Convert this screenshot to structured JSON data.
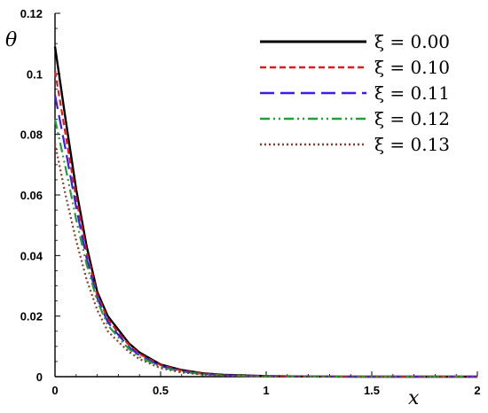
{
  "chart_data": {
    "type": "line",
    "title": "",
    "xlabel": "x",
    "ylabel": "θ",
    "xlim": [
      0,
      2
    ],
    "ylim": [
      0,
      0.12
    ],
    "x_ticks": [
      0,
      0.5,
      1,
      1.5,
      2
    ],
    "x_tick_labels": [
      "0",
      "0.5",
      "1",
      "1.5",
      "2"
    ],
    "y_ticks": [
      0,
      0.02,
      0.04,
      0.06,
      0.08,
      0.1,
      0.12
    ],
    "y_tick_labels": [
      "0",
      "0.02",
      "0.04",
      "0.06",
      "0.08",
      "0.1",
      "0.12"
    ],
    "grid": false,
    "legend_position": "top-right",
    "series": [
      {
        "name": "ξ = 0.00",
        "color": "#000000",
        "dash": "solid",
        "x": [
          0,
          0.05,
          0.1,
          0.15,
          0.2,
          0.25,
          0.3,
          0.35,
          0.4,
          0.5,
          0.6,
          0.7,
          0.8,
          1.0,
          1.2,
          1.5,
          2.0
        ],
        "y": [
          0.109,
          0.085,
          0.062,
          0.043,
          0.028,
          0.02,
          0.0155,
          0.011,
          0.008,
          0.004,
          0.0022,
          0.0011,
          0.0006,
          0.0002,
          5e-05,
          0.0,
          0.0
        ]
      },
      {
        "name": "ξ = 0.10",
        "color": "#e8161c",
        "dash": "dashed",
        "x": [
          0,
          0.05,
          0.1,
          0.15,
          0.2,
          0.25,
          0.3,
          0.35,
          0.4,
          0.5,
          0.6,
          0.7,
          0.8,
          1.0,
          1.2,
          1.5,
          2.0
        ],
        "y": [
          0.101,
          0.08,
          0.059,
          0.041,
          0.027,
          0.019,
          0.0145,
          0.0105,
          0.0075,
          0.0038,
          0.002,
          0.001,
          0.0005,
          0.00015,
          4e-05,
          0.0,
          0.0
        ]
      },
      {
        "name": "ξ = 0.11",
        "color": "#3b1ee6",
        "dash": "longdash",
        "x": [
          0,
          0.05,
          0.1,
          0.15,
          0.2,
          0.25,
          0.3,
          0.35,
          0.4,
          0.5,
          0.6,
          0.7,
          0.8,
          1.0,
          1.2,
          1.5,
          2.0
        ],
        "y": [
          0.093,
          0.075,
          0.056,
          0.039,
          0.026,
          0.018,
          0.0138,
          0.0098,
          0.007,
          0.0035,
          0.0018,
          0.0009,
          0.00045,
          0.00012,
          3e-05,
          0.0,
          0.0
        ]
      },
      {
        "name": "ξ = 0.12",
        "color": "#1fa03a",
        "dash": "dashdotdot",
        "x": [
          0,
          0.05,
          0.1,
          0.15,
          0.2,
          0.25,
          0.3,
          0.35,
          0.4,
          0.5,
          0.6,
          0.7,
          0.8,
          1.0,
          1.2,
          1.5,
          2.0
        ],
        "y": [
          0.085,
          0.069,
          0.052,
          0.037,
          0.025,
          0.017,
          0.013,
          0.0092,
          0.0065,
          0.0032,
          0.0016,
          0.0008,
          0.0004,
          0.0001,
          2e-05,
          0.0,
          0.0
        ]
      },
      {
        "name": "ξ = 0.13",
        "color": "#8b3a2e",
        "dash": "dotted",
        "x": [
          0,
          0.05,
          0.1,
          0.15,
          0.2,
          0.25,
          0.3,
          0.35,
          0.4,
          0.5,
          0.6,
          0.7,
          0.8,
          1.0,
          1.2,
          1.5,
          2.0
        ],
        "y": [
          0.077,
          0.06,
          0.045,
          0.032,
          0.022,
          0.015,
          0.0115,
          0.0082,
          0.0058,
          0.0028,
          0.0014,
          0.0007,
          0.00035,
          8e-05,
          2e-05,
          0.0,
          0.0
        ]
      }
    ]
  }
}
